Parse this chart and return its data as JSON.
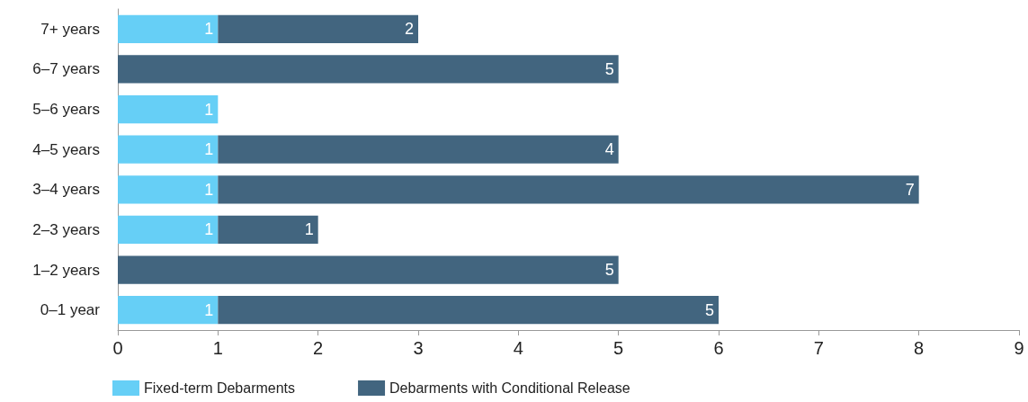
{
  "chart_data": {
    "type": "bar",
    "orientation": "horizontal",
    "stacked": true,
    "data_labels": true,
    "grid": false,
    "legend": "bottom left",
    "categories": [
      "7+ years",
      "6–7 years",
      "5–6 years",
      "4–5 years",
      "3–4 years",
      "2–3 years",
      "1–2 years",
      "0–1 year"
    ],
    "series": [
      {
        "name": "Fixed-term Debarments",
        "color": "#66cff6",
        "values": [
          1,
          null,
          1,
          1,
          1,
          1,
          null,
          1
        ]
      },
      {
        "name": "Debarments with Conditional Release",
        "color": "#42657f",
        "values": [
          2,
          5,
          null,
          4,
          7,
          1,
          5,
          5
        ]
      }
    ],
    "xlim": [
      0,
      9
    ],
    "xticks": [
      0,
      1,
      2,
      3,
      4,
      5,
      6,
      7,
      8,
      9
    ]
  }
}
